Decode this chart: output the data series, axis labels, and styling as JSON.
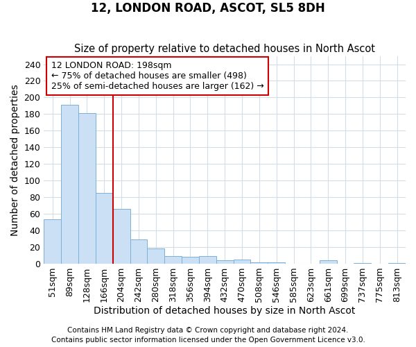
{
  "title": "12, LONDON ROAD, ASCOT, SL5 8DH",
  "subtitle": "Size of property relative to detached houses in North Ascot",
  "xlabel": "Distribution of detached houses by size in North Ascot",
  "ylabel": "Number of detached properties",
  "categories": [
    "51sqm",
    "89sqm",
    "128sqm",
    "166sqm",
    "204sqm",
    "242sqm",
    "280sqm",
    "318sqm",
    "356sqm",
    "394sqm",
    "432sqm",
    "470sqm",
    "508sqm",
    "546sqm",
    "585sqm",
    "623sqm",
    "661sqm",
    "699sqm",
    "737sqm",
    "775sqm",
    "813sqm"
  ],
  "values": [
    53,
    191,
    181,
    85,
    66,
    29,
    18,
    9,
    8,
    9,
    4,
    5,
    2,
    2,
    0,
    0,
    4,
    0,
    1,
    0,
    1
  ],
  "bar_color": "#cce0f5",
  "bar_edge_color": "#7ab0d8",
  "grid_color": "#d4dce8",
  "vline_color": "#cc0000",
  "annotation_text": "12 LONDON ROAD: 198sqm\n← 75% of detached houses are smaller (498)\n25% of semi-detached houses are larger (162) →",
  "annotation_box_color": "white",
  "annotation_box_edge_color": "#cc0000",
  "ylim": [
    0,
    250
  ],
  "yticks": [
    0,
    20,
    40,
    60,
    80,
    100,
    120,
    140,
    160,
    180,
    200,
    220,
    240
  ],
  "footer1": "Contains HM Land Registry data © Crown copyright and database right 2024.",
  "footer2": "Contains public sector information licensed under the Open Government Licence v3.0.",
  "bg_color": "#ffffff",
  "title_fontsize": 12,
  "subtitle_fontsize": 10.5,
  "axis_label_fontsize": 10,
  "tick_fontsize": 9,
  "annotation_fontsize": 9,
  "footer_fontsize": 7.5
}
